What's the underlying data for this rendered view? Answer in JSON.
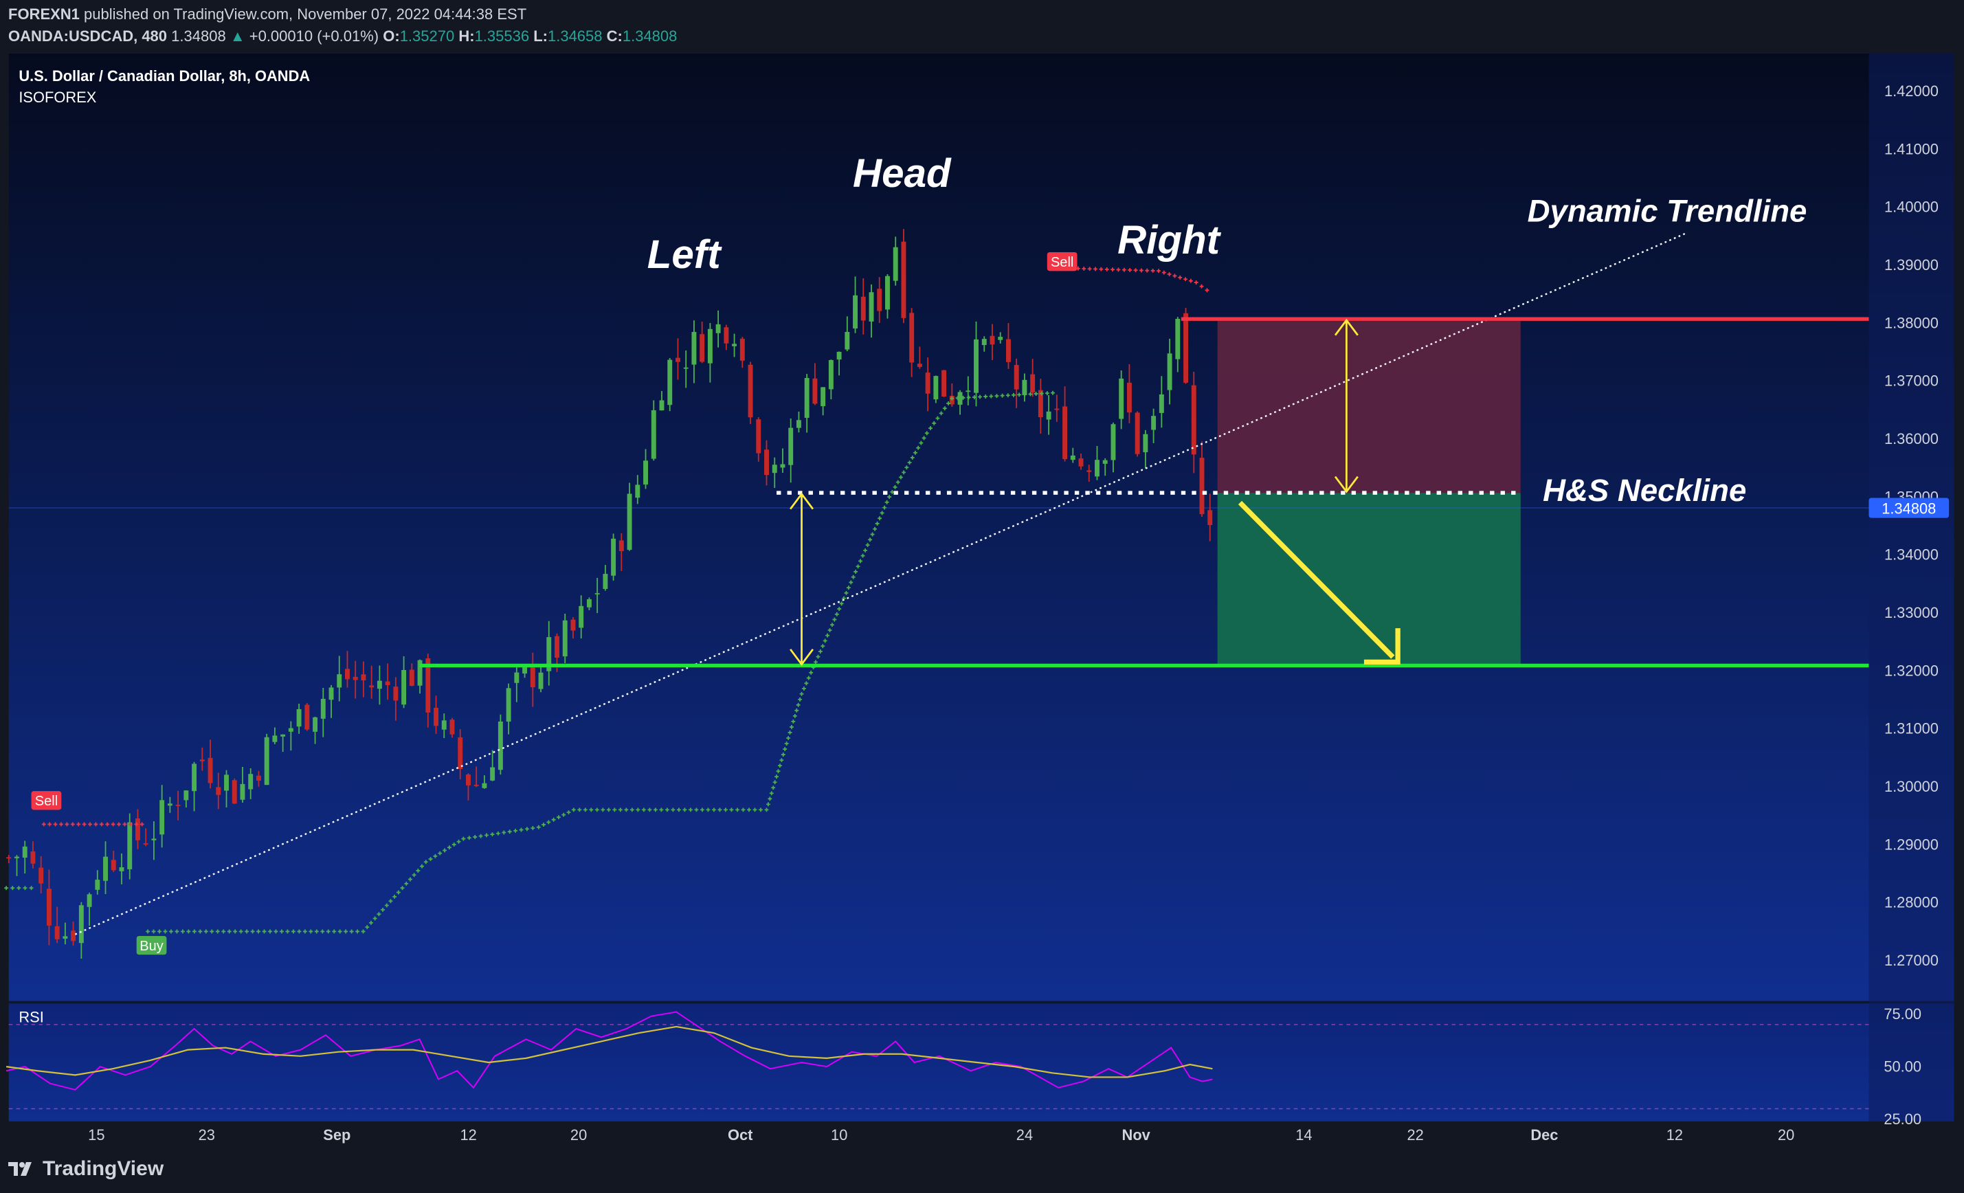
{
  "header": {
    "publisher": "FOREXN1",
    "published_on": "published on TradingView.com, November 07, 2022 04:44:38 EST",
    "symbol": "OANDA:USDCAD, 480",
    "last": "1.34808",
    "change_arrow": "▲",
    "change": "+0.00010 (+0.01%)",
    "o_label": "O:",
    "o_value": "1.35270",
    "h_label": "H:",
    "h_value": "1.35536",
    "l_label": "L:",
    "l_value": "1.34658",
    "c_label": "C:",
    "c_value": "1.34808"
  },
  "footer": {
    "brand": "TradingView",
    "logo_icon": "tradingview-logo-icon"
  },
  "colors": {
    "background_top": "#050b1f",
    "background_bottom": "#102e8f",
    "up": "#4caf50",
    "down": "#c62828",
    "neckline": "#ffffff",
    "support": "#22e33a",
    "stop_zone": "#5e2440",
    "target_zone": "#146c4e",
    "accent": "#ffeb3b",
    "rsi": "#d500f9",
    "rsi_ma": "#d4c13a"
  },
  "chart_data": [
    {
      "type": "candlestick",
      "title": "U.S. Dollar / Canadian Dollar, 8h, OANDA",
      "subtitle": "ISOFOREX",
      "ylim": [
        1.263,
        1.4265
      ],
      "y_ticks": [
        "1.42000",
        "1.41000",
        "1.40000",
        "1.39000",
        "1.38000",
        "1.37000",
        "1.36000",
        "1.35000",
        "1.34000",
        "1.33000",
        "1.32000",
        "1.31000",
        "1.30000",
        "1.29000",
        "1.28000",
        "1.27000"
      ],
      "x_ticks": [
        "15",
        "23",
        "Sep",
        "12",
        "20",
        "Oct",
        "10",
        "24",
        "Nov",
        "14",
        "22",
        "Dec",
        "12",
        "20"
      ],
      "last_price_label": "1.34808",
      "price_path": [
        [
          0,
          1.287
        ],
        [
          20,
          1.289
        ],
        [
          40,
          1.278
        ],
        [
          55,
          1.274
        ],
        [
          78,
          1.286
        ],
        [
          100,
          1.29
        ],
        [
          125,
          1.293
        ],
        [
          160,
          1.305
        ],
        [
          190,
          1.299
        ],
        [
          215,
          1.307
        ],
        [
          245,
          1.313
        ],
        [
          275,
          1.319
        ],
        [
          305,
          1.317
        ],
        [
          332,
          1.32
        ],
        [
          350,
          1.311
        ],
        [
          370,
          1.302
        ],
        [
          385,
          1.3
        ],
        [
          405,
          1.315
        ],
        [
          430,
          1.321
        ],
        [
          460,
          1.327
        ],
        [
          490,
          1.34
        ],
        [
          510,
          1.353
        ],
        [
          530,
          1.372
        ],
        [
          555,
          1.376
        ],
        [
          585,
          1.381
        ],
        [
          610,
          1.356
        ],
        [
          620,
          1.352
        ],
        [
          640,
          1.368
        ],
        [
          660,
          1.37
        ],
        [
          680,
          1.381
        ],
        [
          700,
          1.383
        ],
        [
          715,
          1.394
        ],
        [
          730,
          1.372
        ],
        [
          760,
          1.368
        ],
        [
          790,
          1.377
        ],
        [
          805,
          1.372
        ],
        [
          820,
          1.366
        ],
        [
          840,
          1.364
        ],
        [
          860,
          1.356
        ],
        [
          880,
          1.358
        ],
        [
          895,
          1.368
        ],
        [
          910,
          1.358
        ],
        [
          925,
          1.364
        ],
        [
          938,
          1.381
        ],
        [
          945,
          1.369
        ],
        [
          955,
          1.352
        ],
        [
          962,
          1.349
        ],
        [
          966,
          1.348
        ]
      ],
      "price_bar_count": 150,
      "trailing_stop": {
        "green_segments": [
          [
            [
              5,
              1.2825
            ],
            [
              30,
              1.2825
            ]
          ],
          [
            [
              118,
              1.275
            ],
            [
              290,
              1.275
            ],
            [
              340,
              1.287
            ],
            [
              370,
              1.291
            ],
            [
              430,
              1.293
            ],
            [
              458,
              1.296
            ],
            [
              612,
              1.296
            ],
            [
              640,
              1.316
            ],
            [
              685,
              1.338
            ],
            [
              710,
              1.35
            ],
            [
              740,
              1.361
            ],
            [
              760,
              1.367
            ],
            [
              845,
              1.368
            ]
          ]
        ],
        "red_segments": [
          [
            [
              35,
              1.2935
            ],
            [
              118,
              1.2935
            ]
          ],
          [
            [
              847,
              1.3895
            ],
            [
              925,
              1.389
            ],
            [
              955,
              1.387
            ],
            [
              968,
              1.385
            ]
          ]
        ],
        "signals": [
          {
            "label": "Sell",
            "x": 37,
            "price": 1.2975,
            "type": "sell"
          },
          {
            "label": "Buy",
            "x": 121,
            "price": 1.2725,
            "type": "buy"
          },
          {
            "label": "Sell",
            "x": 848,
            "price": 1.3905,
            "type": "sell"
          }
        ]
      },
      "annotations": {
        "labels": [
          {
            "text": "Left",
            "x": 546,
            "price": 1.3895
          },
          {
            "text": "Head",
            "x": 720,
            "price": 1.4035
          },
          {
            "text": "Right",
            "x": 933,
            "price": 1.392
          },
          {
            "text": "Dynamic Trendline",
            "x": 1331,
            "price": 1.3975
          },
          {
            "text": "H&S Neckline",
            "x": 1313,
            "price": 1.3493
          }
        ],
        "dynamic_trendline": [
          [
            60,
            1.2745
          ],
          [
            1346,
            1.3955
          ]
        ],
        "neckline": {
          "price": 1.3507,
          "x_start": 620,
          "x_end": 1212
        },
        "support": {
          "price": 1.3209,
          "x_start": 335,
          "x_end": 1492
        },
        "resistance": {
          "price": 1.3807,
          "x_start": 943,
          "x_end": 1492
        },
        "stop_zone": {
          "x_start": 972,
          "x_end": 1214,
          "price_top": 1.3807,
          "price_bottom": 1.3507
        },
        "target_zone": {
          "x_start": 972,
          "x_end": 1214,
          "price_top": 1.3507,
          "price_bottom": 1.3209
        },
        "measure_arrows": [
          {
            "x": 640,
            "from": 1.3505,
            "to": 1.3211
          },
          {
            "x": 1075,
            "from": 1.3805,
            "to": 1.3509
          }
        ],
        "target_arrow": [
          [
            990,
            1.349
          ],
          [
            1116,
            1.3215
          ]
        ]
      }
    },
    {
      "type": "line",
      "title": "RSI",
      "ylim": [
        24,
        80
      ],
      "y_ticks": [
        "75.00",
        "50.00",
        "25.00"
      ],
      "bands": [
        70,
        30
      ],
      "series": [
        {
          "name": "",
          "role": "rsi",
          "points": [
            [
              5,
              48
            ],
            [
              20,
              50
            ],
            [
              40,
              42
            ],
            [
              60,
              39
            ],
            [
              80,
              50
            ],
            [
              100,
              46
            ],
            [
              120,
              50
            ],
            [
              140,
              60
            ],
            [
              155,
              68
            ],
            [
              170,
              60
            ],
            [
              185,
              56
            ],
            [
              200,
              62
            ],
            [
              220,
              55
            ],
            [
              240,
              58
            ],
            [
              260,
              65
            ],
            [
              280,
              55
            ],
            [
              300,
              58
            ],
            [
              320,
              60
            ],
            [
              335,
              63
            ],
            [
              350,
              44
            ],
            [
              365,
              48
            ],
            [
              378,
              40
            ],
            [
              395,
              55
            ],
            [
              420,
              63
            ],
            [
              440,
              58
            ],
            [
              460,
              68
            ],
            [
              480,
              64
            ],
            [
              500,
              68
            ],
            [
              520,
              74
            ],
            [
              540,
              76
            ],
            [
              555,
              70
            ],
            [
              575,
              62
            ],
            [
              595,
              55
            ],
            [
              615,
              49
            ],
            [
              640,
              52
            ],
            [
              660,
              50
            ],
            [
              680,
              57
            ],
            [
              700,
              55
            ],
            [
              715,
              62
            ],
            [
              730,
              52
            ],
            [
              750,
              55
            ],
            [
              775,
              48
            ],
            [
              795,
              52
            ],
            [
              815,
              50
            ],
            [
              830,
              45
            ],
            [
              845,
              40
            ],
            [
              865,
              43
            ],
            [
              885,
              49
            ],
            [
              900,
              45
            ],
            [
              915,
              51
            ],
            [
              935,
              59
            ],
            [
              950,
              45
            ],
            [
              960,
              43
            ],
            [
              968,
              44
            ]
          ]
        },
        {
          "name": "",
          "role": "ma",
          "points": [
            [
              5,
              50
            ],
            [
              30,
              48
            ],
            [
              60,
              46
            ],
            [
              90,
              49
            ],
            [
              120,
              53
            ],
            [
              150,
              58
            ],
            [
              180,
              59
            ],
            [
              210,
              56
            ],
            [
              240,
              55
            ],
            [
              270,
              57
            ],
            [
              300,
              58
            ],
            [
              330,
              58
            ],
            [
              360,
              55
            ],
            [
              390,
              52
            ],
            [
              420,
              54
            ],
            [
              450,
              58
            ],
            [
              480,
              62
            ],
            [
              510,
              66
            ],
            [
              540,
              69
            ],
            [
              570,
              66
            ],
            [
              600,
              59
            ],
            [
              630,
              55
            ],
            [
              660,
              54
            ],
            [
              690,
              56
            ],
            [
              720,
              56
            ],
            [
              750,
              54
            ],
            [
              780,
              52
            ],
            [
              810,
              50
            ],
            [
              840,
              47
            ],
            [
              870,
              45
            ],
            [
              900,
              45
            ],
            [
              930,
              48
            ],
            [
              950,
              51
            ],
            [
              968,
              49
            ]
          ]
        }
      ]
    }
  ]
}
